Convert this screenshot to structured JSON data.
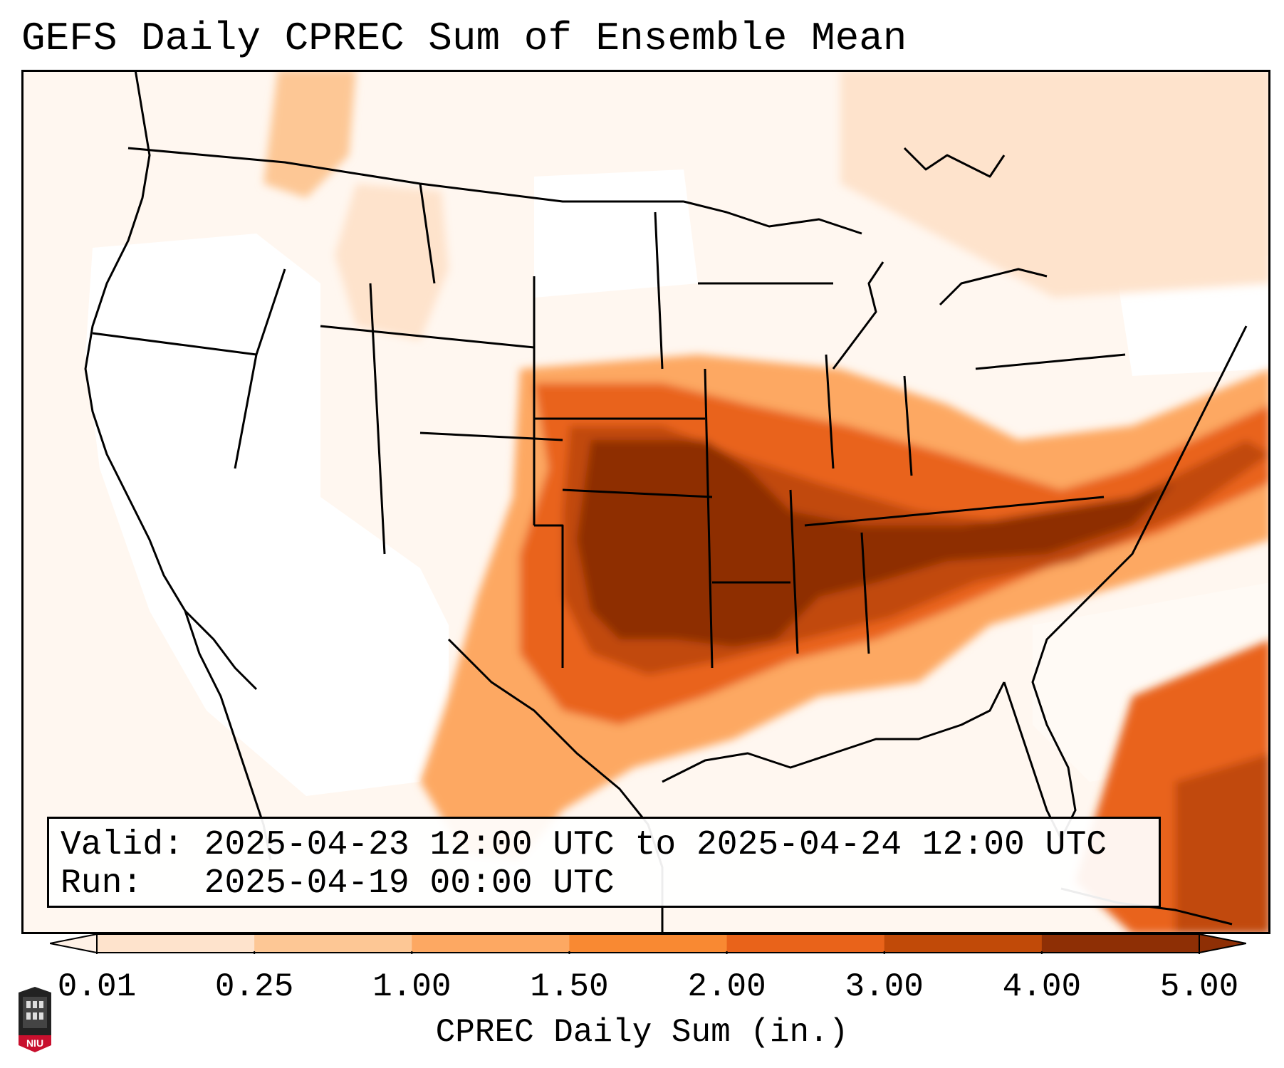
{
  "title": "GEFS Daily CPREC Sum of Ensemble Mean",
  "info": {
    "valid_label": "Valid:",
    "valid_value": "2025-04-23 12:00 UTC to 2025-04-24 12:00 UTC",
    "run_label": "Run:",
    "run_value": "2025-04-19 00:00 UTC"
  },
  "colorbar": {
    "label": "CPREC Daily Sum (in.)",
    "ticks": [
      "0.01",
      "0.25",
      "1.00",
      "1.50",
      "2.00",
      "3.00",
      "4.00",
      "5.00"
    ],
    "colors": [
      "#fff1e6",
      "#fee3cc",
      "#fdc795",
      "#fda862",
      "#f98932",
      "#e9631a",
      "#c14a08",
      "#8e2f05"
    ],
    "extend": "both"
  },
  "map": {
    "projection": "Lambert conformal, CONUS",
    "ocean_color": "#fdf0e4",
    "land_base_color": "#ffffff",
    "max_band": "Oklahoma to Carolinas"
  },
  "logo": {
    "text": "NIU",
    "accent": "#c8102e"
  }
}
